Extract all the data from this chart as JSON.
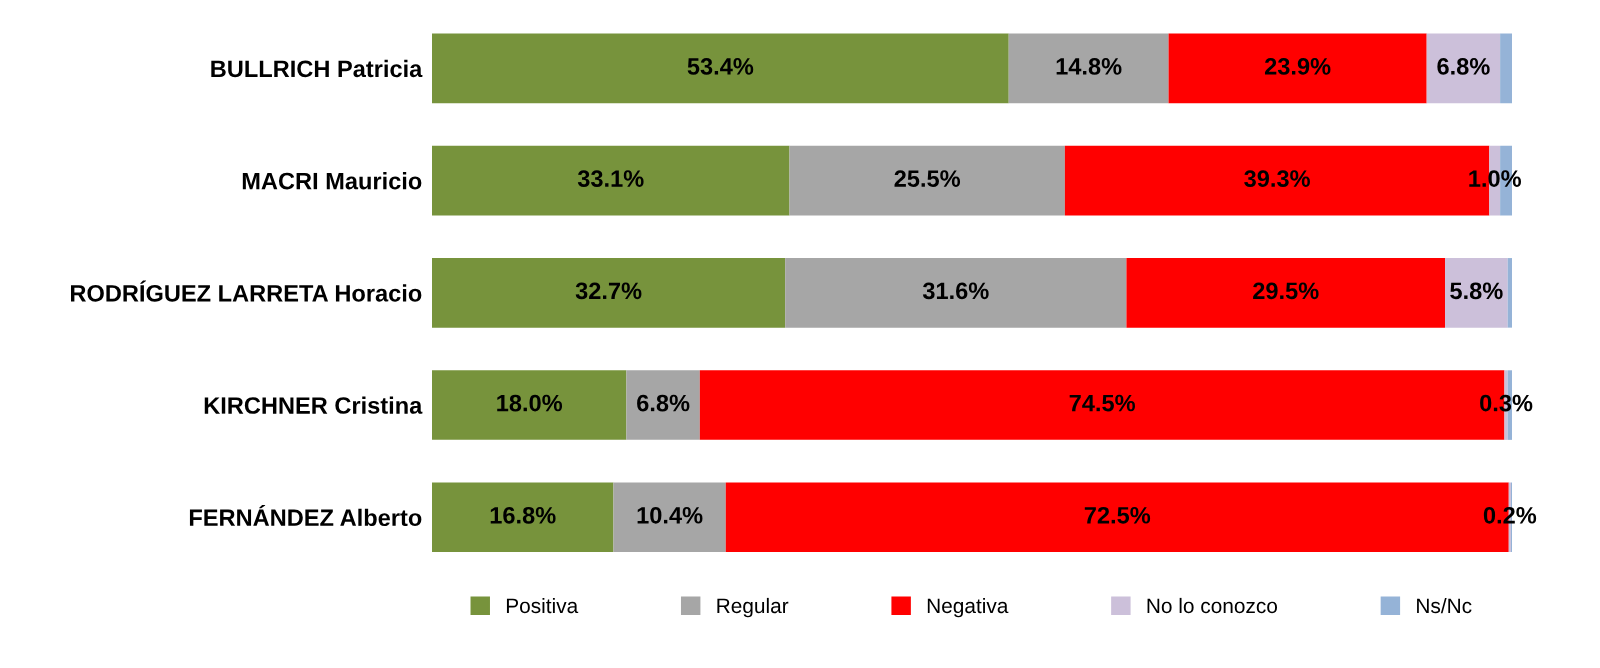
{
  "chart_data": {
    "type": "bar",
    "orientation": "horizontal",
    "stacked": true,
    "categories": [
      "BULLRICH Patricia",
      "MACRI Mauricio",
      "RODRÍGUEZ LARRETA Horacio",
      "KIRCHNER Cristina",
      "FERNÁNDEZ Alberto"
    ],
    "series": [
      {
        "name": "Positiva",
        "color": "#77933c",
        "values": [
          53.4,
          33.1,
          32.7,
          18.0,
          16.8
        ],
        "value_labels": [
          "53.4%",
          "33.1%",
          "32.7%",
          "18.0%",
          "16.8%"
        ]
      },
      {
        "name": "Regular",
        "color": "#a6a6a6",
        "values": [
          14.8,
          25.5,
          31.6,
          6.8,
          10.4
        ],
        "value_labels": [
          "14.8%",
          "25.5%",
          "31.6%",
          "6.8%",
          "10.4%"
        ]
      },
      {
        "name": "Negativa",
        "color": "#ff0000",
        "values": [
          23.9,
          39.3,
          29.5,
          74.5,
          72.5
        ],
        "value_labels": [
          "23.9%",
          "39.3%",
          "29.5%",
          "74.5%",
          "72.5%"
        ]
      },
      {
        "name": "No lo conozco",
        "color": "#ccc0da",
        "values": [
          6.8,
          1.0,
          5.8,
          0.3,
          0.2
        ],
        "value_labels": [
          "6.8%",
          "1.0%",
          "5.8%",
          "0.3%",
          "0.2%"
        ]
      },
      {
        "name": "Ns/Nc",
        "color": "#95b3d7",
        "values": [
          1.1,
          1.1,
          0.4,
          0.4,
          0.1
        ],
        "value_labels": [
          null,
          null,
          null,
          null,
          null
        ]
      }
    ],
    "xlim": [
      0,
      100
    ],
    "tick_labels": "y",
    "legend": "bottom",
    "grid": false
  }
}
